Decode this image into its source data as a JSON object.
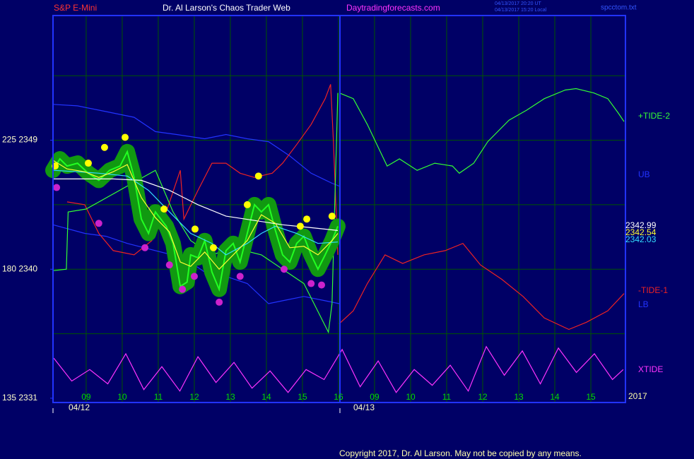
{
  "chart_data": {
    "type": "line",
    "header": [
      "S&P E-Mini",
      "Dr. Al Larson's Chaos Trader Web",
      "Daytradingforecasts.com"
    ],
    "timestamps": [
      "04/13/2017 20:20 UT",
      "04/13/2017 15:20 Local"
    ],
    "file": "spcctom.txt",
    "copyright": "Copyright 2017, Dr. Al Larson. May not be copied by any means.",
    "dates": [
      "04/12",
      "04/13"
    ],
    "year": "2017",
    "xlim": [
      0.08,
      15.96
    ],
    "xticks": [
      {
        "value": 1,
        "label": "09"
      },
      {
        "value": 2,
        "label": "10"
      },
      {
        "value": 3,
        "label": "11"
      },
      {
        "value": 4,
        "label": "12"
      },
      {
        "value": 5,
        "label": "13"
      },
      {
        "value": 6,
        "label": "14"
      },
      {
        "value": 7,
        "label": "15"
      },
      {
        "value": 8,
        "label": "16"
      },
      {
        "value": 9,
        "label": "09"
      },
      {
        "value": 10,
        "label": "10"
      },
      {
        "value": 11,
        "label": "11"
      },
      {
        "value": 12,
        "label": "12"
      },
      {
        "value": 13,
        "label": "13"
      },
      {
        "value": 14,
        "label": "14"
      },
      {
        "value": 15,
        "label": "15"
      }
    ],
    "ylim": [
      2330.7,
      2357.7
    ],
    "yticks": [
      {
        "value": 2349,
        "label": "225  2349"
      },
      {
        "value": 2340,
        "label": "180  2340"
      },
      {
        "value": 2331,
        "label": "135  2331"
      }
    ],
    "ygrid": [
      2353.5,
      2349,
      2344.5,
      2340,
      2335.5
    ],
    "grid": true,
    "end_labels": [
      {
        "value": 2342.99,
        "color": "#ffffff"
      },
      {
        "value": 2342.54,
        "color": "#ffff33"
      },
      {
        "value": 2342.03,
        "color": "#33ddff"
      }
    ],
    "series": [
      {
        "name": "+TIDE-2",
        "color": "#33ff33",
        "kind": "line",
        "x": [
          8.02,
          8.41,
          8.8,
          9.35,
          9.69,
          10.18,
          10.67,
          11.16,
          11.35,
          11.75,
          12.14,
          12.73,
          13.22,
          13.71,
          14.29,
          14.59,
          15.08,
          15.47,
          15.76,
          15.92
        ],
        "values": [
          2352.3,
          2351.9,
          2350.1,
          2347.2,
          2347.7,
          2346.9,
          2347.4,
          2347.2,
          2346.7,
          2347.4,
          2348.9,
          2350.4,
          2351.1,
          2351.9,
          2352.5,
          2352.6,
          2352.3,
          2351.9,
          2350.9,
          2350.3
        ]
      },
      {
        "name": "UB",
        "color": "#2233ff",
        "kind": "line",
        "x": [
          0.08,
          0.76,
          1.55,
          2.33,
          2.92,
          3.51,
          4.29,
          4.88,
          5.47,
          6.06,
          6.65,
          7.24,
          7.82,
          8.02
        ],
        "values": [
          2351.5,
          2351.4,
          2351.0,
          2350.6,
          2349.6,
          2349.4,
          2349.1,
          2349.4,
          2349.1,
          2348.9,
          2347.9,
          2346.7,
          2346.0,
          2345.8
        ]
      },
      {
        "name": "-TIDE-1",
        "color": "#ee2222",
        "kind": "line",
        "x": [
          8.02,
          8.41,
          8.8,
          9.29,
          9.78,
          10.37,
          10.96,
          11.45,
          11.94,
          12.53,
          13.12,
          13.71,
          14.39,
          14.88,
          15.47,
          15.92
        ],
        "values": [
          2336.2,
          2337.1,
          2339.0,
          2341.0,
          2340.4,
          2341.0,
          2341.3,
          2341.8,
          2340.3,
          2339.3,
          2338.1,
          2336.6,
          2335.8,
          2336.3,
          2337.1,
          2338.3
        ]
      },
      {
        "name": "LB",
        "color": "#2233ff",
        "kind": "line",
        "x": [
          0.08,
          0.96,
          1.55,
          2.14,
          2.92,
          3.71,
          4.29,
          4.88,
          5.47,
          6.06,
          6.45,
          7.04,
          7.63,
          8.02
        ],
        "values": [
          2343.1,
          2342.5,
          2342.3,
          2341.8,
          2341.3,
          2340.8,
          2339.8,
          2339.5,
          2339.0,
          2337.6,
          2337.8,
          2338.1,
          2337.8,
          2337.6
        ]
      },
      {
        "name": "XTIDE",
        "color": "#ff33ff",
        "kind": "line",
        "x": [
          0.1,
          0.6,
          1.1,
          1.6,
          2.1,
          2.6,
          3.1,
          3.6,
          4.1,
          4.6,
          5.1,
          5.6,
          6.1,
          6.6,
          7.1,
          7.6,
          8.1,
          8.6,
          9.1,
          9.6,
          10.1,
          10.6,
          11.1,
          11.6,
          12.1,
          12.6,
          13.1,
          13.6,
          14.1,
          14.6,
          15.1,
          15.6,
          15.9
        ],
        "values": [
          2333.8,
          2332.2,
          2333.0,
          2332.0,
          2334.1,
          2331.6,
          2333.2,
          2331.5,
          2333.9,
          2332.1,
          2333.5,
          2331.7,
          2332.9,
          2331.4,
          2333.0,
          2332.3,
          2334.4,
          2331.8,
          2333.6,
          2331.4,
          2333.0,
          2331.9,
          2333.3,
          2331.5,
          2334.6,
          2332.6,
          2334.3,
          2332.0,
          2334.5,
          2332.8,
          2334.1,
          2332.3,
          2333.0
        ]
      },
      {
        "color": "#ee2222",
        "kind": "line",
        "x": [
          0.47,
          0.96,
          1.35,
          1.75,
          2.33,
          2.82,
          3.22,
          3.61,
          3.71,
          4.1,
          4.49,
          4.88,
          5.27,
          5.67,
          6.16,
          6.45,
          6.84,
          7.24,
          7.63,
          7.78,
          7.86,
          7.98
        ],
        "values": [
          2344.7,
          2344.5,
          2342.5,
          2341.3,
          2341.0,
          2342.0,
          2344.0,
          2346.9,
          2343.5,
          2345.5,
          2347.4,
          2347.4,
          2346.7,
          2346.4,
          2346.7,
          2347.4,
          2348.7,
          2350.1,
          2351.9,
          2352.9,
          2348.9,
          2341.0
        ]
      },
      {
        "color": "#33ff33",
        "kind": "line",
        "x": [
          0.08,
          0.45,
          0.5,
          1.0,
          2.92,
          3.41,
          3.9,
          4.49,
          5.08,
          5.86,
          6.45,
          7.04,
          7.72,
          7.82,
          7.98
        ],
        "values": [
          2339.9,
          2340.0,
          2344.0,
          2344.2,
          2346.9,
          2344.0,
          2342.0,
          2341.0,
          2341.5,
          2341.0,
          2340.0,
          2339.0,
          2335.6,
          2337.6,
          2352.3
        ]
      },
      {
        "color": "#22ff22",
        "kind": "price",
        "x": [
          0.08,
          0.27,
          0.47,
          0.76,
          1.06,
          1.35,
          1.65,
          1.94,
          2.14,
          2.33,
          2.53,
          2.73,
          2.92,
          3.22,
          3.41,
          3.61,
          3.8,
          3.9,
          4.1,
          4.29,
          4.49,
          4.69,
          4.88,
          5.08,
          5.27,
          5.47,
          5.67,
          5.86,
          6.06,
          6.25,
          6.45,
          6.65,
          6.84,
          7.04,
          7.24,
          7.43,
          7.63,
          7.82,
          7.98
        ],
        "values": [
          2346.9,
          2347.7,
          2347.2,
          2347.4,
          2346.7,
          2346.2,
          2346.9,
          2347.2,
          2348.2,
          2346.4,
          2343.5,
          2342.5,
          2344.0,
          2343.0,
          2341.8,
          2338.8,
          2339.1,
          2341.0,
          2340.8,
          2342.0,
          2339.8,
          2338.6,
          2341.3,
          2341.8,
          2340.5,
          2342.5,
          2344.5,
          2344.0,
          2344.5,
          2342.7,
          2341.0,
          2340.5,
          2341.8,
          2342.3,
          2341.0,
          2340.0,
          2341.0,
          2342.0,
          2343.0
        ]
      },
      {
        "color": "#ffffff",
        "kind": "line",
        "x": [
          0.08,
          0.96,
          1.75,
          2.53,
          3.31,
          4.1,
          4.88,
          5.67,
          6.45,
          7.24,
          7.98
        ],
        "values": [
          2346.3,
          2346.3,
          2346.3,
          2346.2,
          2345.5,
          2344.5,
          2343.7,
          2343.4,
          2343.1,
          2342.9,
          2342.7
        ]
      },
      {
        "color": "#33ddff",
        "kind": "line",
        "x": [
          0.08,
          0.76,
          1.35,
          2.14,
          2.73,
          3.31,
          3.9,
          4.49,
          4.88,
          5.47,
          5.86,
          6.25,
          6.84,
          7.43,
          7.98
        ],
        "values": [
          2346.9,
          2346.8,
          2346.7,
          2346.5,
          2345.5,
          2344.0,
          2342.5,
          2341.8,
          2341.0,
          2341.8,
          2342.5,
          2343.0,
          2342.5,
          2341.8,
          2341.9
        ]
      },
      {
        "color": "#ffff33",
        "kind": "line",
        "x": [
          0.08,
          0.47,
          0.96,
          1.35,
          1.75,
          2.14,
          2.53,
          2.92,
          3.31,
          3.61,
          3.9,
          4.29,
          4.69,
          5.08,
          5.47,
          5.86,
          6.25,
          6.65,
          7.04,
          7.43,
          7.82,
          7.98
        ],
        "values": [
          2347.6,
          2347.0,
          2346.8,
          2346.4,
          2346.8,
          2347.3,
          2345.0,
          2343.6,
          2342.6,
          2340.5,
          2340.2,
          2341.2,
          2340.0,
          2341.0,
          2342.0,
          2343.8,
          2343.2,
          2341.5,
          2341.6,
          2341.0,
          2342.0,
          2342.5
        ]
      },
      {
        "color": "#ffff00",
        "kind": "dot",
        "x": [
          0.14,
          1.06,
          1.51,
          2.08,
          3.16,
          4.02,
          4.53,
          5.47,
          5.78,
          6.94,
          7.12,
          7.82
        ],
        "values": [
          2347.2,
          2347.4,
          2348.5,
          2349.2,
          2344.2,
          2342.8,
          2341.5,
          2344.5,
          2346.5,
          2343.0,
          2343.5,
          2343.7
        ]
      },
      {
        "color": "#cc22cc",
        "kind": "dot",
        "x": [
          0.18,
          1.35,
          2.63,
          3.31,
          3.67,
          4.0,
          4.69,
          5.27,
          6.49,
          7.24,
          7.53
        ],
        "values": [
          2345.7,
          2343.2,
          2341.5,
          2340.3,
          2338.6,
          2339.5,
          2337.7,
          2339.5,
          2340.0,
          2339.0,
          2338.9
        ]
      }
    ]
  }
}
